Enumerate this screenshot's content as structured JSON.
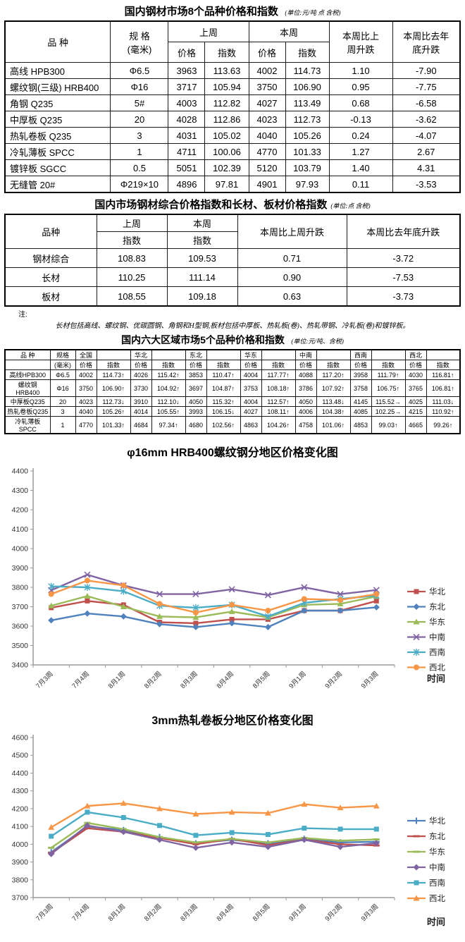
{
  "table1": {
    "title": "国内钢材市场8个品种价格和指数",
    "unit": "(单位:元/吨 点 含税)",
    "col_variety": "品    种",
    "col_spec": "规  格\n(毫米)",
    "col_lastweek": "上周",
    "col_thisweek": "本周",
    "col_wow": "本周比上\n周升跌",
    "col_ytd": "本周比去年\n底升跌",
    "price_label": "价格",
    "index_label": "指数",
    "rows": [
      [
        "高线 HPB300",
        "Φ6.5",
        "3963",
        "113.63",
        "4002",
        "114.73",
        "1.10",
        "-7.90"
      ],
      [
        "螺纹钢(三级) HRB400",
        "Φ16",
        "3717",
        "105.94",
        "3750",
        "106.90",
        "0.95",
        "-7.75"
      ],
      [
        "角钢 Q235",
        "5#",
        "4003",
        "112.82",
        "4027",
        "113.49",
        "0.68",
        "-6.58"
      ],
      [
        "中厚板 Q235",
        "20",
        "4028",
        "112.86",
        "4023",
        "112.73",
        "-0.13",
        "-3.62"
      ],
      [
        "热轧卷板 Q235",
        "3",
        "4031",
        "105.02",
        "4040",
        "105.26",
        "0.24",
        "-4.07"
      ],
      [
        "冷轧薄板 SPCC",
        "1",
        "4711",
        "100.06",
        "4770",
        "101.33",
        "1.27",
        "2.67"
      ],
      [
        "镀锌板 SGCC",
        "0.5",
        "5051",
        "102.39",
        "5120",
        "103.79",
        "1.40",
        "4.31"
      ],
      [
        "无缝管 20#",
        "Φ219×10",
        "4896",
        "97.81",
        "4901",
        "97.93",
        "0.11",
        "-3.53"
      ]
    ]
  },
  "table2": {
    "title": "国内市场钢材综合价格指数和长材、板材价格指数",
    "unit": "(单位:点 含税)",
    "col_variety": "品种",
    "col_lastweek": "上周",
    "col_thisweek": "本周",
    "index_label": "指数",
    "col_wow": "本周比上周升跌",
    "col_ytd": "本周比去年底升跌",
    "rows": [
      [
        "钢材综合",
        "108.83",
        "109.53",
        "0.71",
        "-3.72"
      ],
      [
        "长材",
        "110.25",
        "111.14",
        "0.90",
        "-7.53"
      ],
      [
        "板材",
        "108.55",
        "109.18",
        "0.63",
        "-3.73"
      ]
    ]
  },
  "note": {
    "label": "注:",
    "text": "长材包括高线、螺纹钢、优碳圆钢、角钢和H型钢,板材包括中厚板、热轧板(卷)、热轧带钢、冷轧板(卷)和镀锌板。"
  },
  "table3": {
    "title": "国内六大区域市场5个品种价格和指数",
    "unit": "(单位:元/吨、含税)",
    "header_rows": [
      [
        "品  种",
        "规格",
        "全国",
        "",
        "华北",
        "",
        "东北",
        "",
        "华东",
        "",
        "中南",
        "",
        "西南",
        "",
        "西北",
        ""
      ],
      [
        "",
        "(毫米)",
        "价格",
        "指数",
        "价格",
        "指数",
        "价格",
        "指数",
        "价格",
        "指数",
        "价格",
        "指数",
        "价格",
        "指数",
        "价格",
        "指数"
      ]
    ],
    "rows": [
      [
        "高线HPB300",
        "Φ6.5",
        "4002",
        "114.73↑",
        "4026",
        "115.42↑",
        "3853",
        "110.47↑",
        "4004",
        "117.77↑",
        "4088",
        "117.20↑",
        "3958",
        "111.79↑",
        "4030",
        "116.81↑"
      ],
      [
        "螺纹钢HRB400",
        "Φ16",
        "3750",
        "106.90↑",
        "3730",
        "104.92↑",
        "3697",
        "104.87↑",
        "3753",
        "108.18↑",
        "3786",
        "107.92↑",
        "3758",
        "106.75↑",
        "3765",
        "106.81↑"
      ],
      [
        "中厚板Q235",
        "20",
        "4023",
        "112.73↓",
        "3910",
        "112.10↓",
        "4050",
        "115.32↑",
        "4004",
        "112.57↑",
        "4050",
        "113.48↓",
        "4145",
        "115.52→",
        "4025",
        "111.03↓"
      ],
      [
        "热轧卷板Q235",
        "3",
        "4040",
        "105.26↑",
        "4014",
        "105.55↑",
        "3993",
        "106.15↓",
        "4027",
        "108.11↑",
        "4006",
        "104.38↑",
        "4085",
        "102.25→",
        "4215",
        "110.92↑"
      ],
      [
        "冷轧薄板SPCC",
        "1",
        "4770",
        "101.33↑",
        "4684",
        "97.34↑",
        "4680",
        "102.56↑",
        "4863",
        "104.26↑",
        "4758",
        "101.06↑",
        "4853",
        "99.03↑",
        "4665",
        "99.26↑"
      ]
    ]
  },
  "chart_data": [
    {
      "type": "line",
      "title": "φ16mm HRB400螺纹钢分地区价格变化图",
      "xlabel": "时间",
      "ylabel": "",
      "ylim": [
        3400,
        4400
      ],
      "ytick_step": 100,
      "grid": false,
      "legend_position": "right",
      "x_categories": [
        "7月3周",
        "7月4周",
        "8月1周",
        "8月2周",
        "8月3周",
        "8月4周",
        "8月5周",
        "9月1周",
        "9月2周",
        "9月3周"
      ],
      "series": [
        {
          "name": "华北",
          "color": "#C0504D",
          "marker": "square",
          "values": [
            3695,
            3730,
            3710,
            3620,
            3615,
            3635,
            3635,
            3680,
            3680,
            3730
          ]
        },
        {
          "name": "东北",
          "color": "#4F81BD",
          "marker": "diamond",
          "values": [
            3630,
            3665,
            3650,
            3610,
            3595,
            3615,
            3595,
            3680,
            3680,
            3697
          ]
        },
        {
          "name": "华东",
          "color": "#9BBB59",
          "marker": "triangle",
          "values": [
            3705,
            3755,
            3700,
            3650,
            3645,
            3675,
            3645,
            3710,
            3715,
            3753
          ]
        },
        {
          "name": "中南",
          "color": "#8064A2",
          "marker": "x",
          "values": [
            3785,
            3865,
            3810,
            3765,
            3765,
            3790,
            3760,
            3800,
            3765,
            3786
          ]
        },
        {
          "name": "西南",
          "color": "#4BACC6",
          "marker": "asterisk",
          "values": [
            3805,
            3800,
            3780,
            3705,
            3695,
            3710,
            3650,
            3720,
            3740,
            3758
          ]
        },
        {
          "name": "西北",
          "color": "#F79646",
          "marker": "circle",
          "values": [
            3765,
            3835,
            3810,
            3715,
            3670,
            3710,
            3680,
            3740,
            3735,
            3765
          ]
        }
      ]
    },
    {
      "type": "line",
      "title": "3mm热轧卷板分地区价格变化图",
      "xlabel": "时间",
      "ylabel": "",
      "ylim": [
        3700,
        4600
      ],
      "ytick_step": 100,
      "grid": false,
      "legend_position": "right",
      "x_categories": [
        "7月3周",
        "7月4周",
        "8月1周",
        "8月2周",
        "8月3周",
        "8月4周",
        "8月5周",
        "9月1周",
        "9月2周",
        "9月3周"
      ],
      "series": [
        {
          "name": "华北",
          "color": "#4F81BD",
          "marker": "plus",
          "values": [
            3955,
            4100,
            4080,
            4040,
            4005,
            4025,
            4005,
            4030,
            4010,
            4014
          ]
        },
        {
          "name": "东北",
          "color": "#C0504D",
          "marker": "dash",
          "values": [
            3950,
            4090,
            4070,
            4035,
            4000,
            4030,
            3995,
            4025,
            4000,
            3993
          ]
        },
        {
          "name": "华东",
          "color": "#9BBB59",
          "marker": "dash",
          "values": [
            3980,
            4120,
            4085,
            4040,
            4010,
            4030,
            4010,
            4035,
            4020,
            4027
          ]
        },
        {
          "name": "中南",
          "color": "#8064A2",
          "marker": "diamond",
          "values": [
            3945,
            4105,
            4070,
            4025,
            3980,
            4010,
            3985,
            4025,
            3985,
            4006
          ]
        },
        {
          "name": "西南",
          "color": "#4BACC6",
          "marker": "square",
          "values": [
            4045,
            4180,
            4150,
            4105,
            4050,
            4065,
            4055,
            4090,
            4085,
            4085
          ]
        },
        {
          "name": "西北",
          "color": "#F79646",
          "marker": "triangle",
          "values": [
            4095,
            4215,
            4230,
            4200,
            4170,
            4180,
            4175,
            4225,
            4205,
            4215
          ]
        }
      ]
    }
  ]
}
